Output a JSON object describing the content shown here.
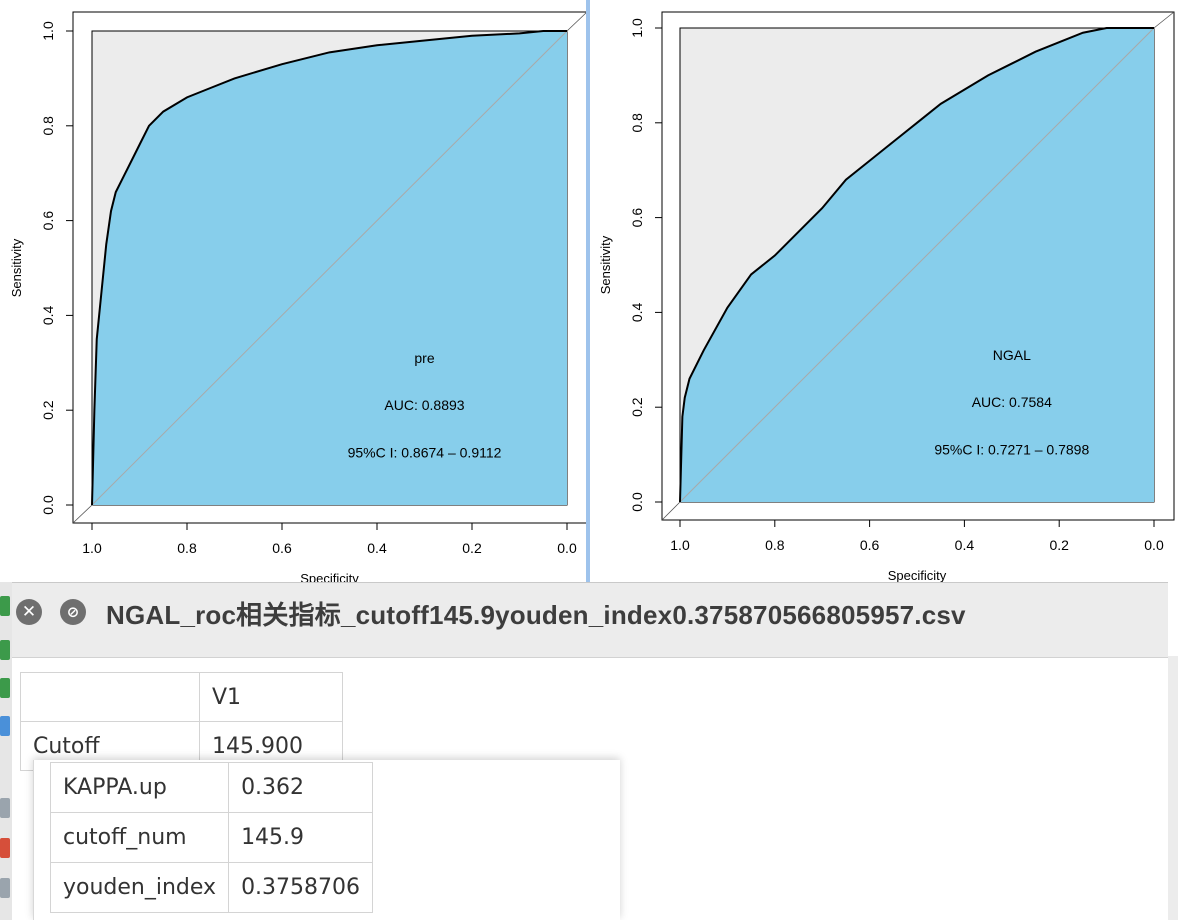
{
  "plots": [
    {
      "title": "",
      "xlabel": "Specificity",
      "ylabel": "Sensitivity",
      "x_ticks": [
        "1.0",
        "0.8",
        "0.6",
        "0.4",
        "0.2",
        "0.0"
      ],
      "y_ticks": [
        "0.0",
        "0.2",
        "0.4",
        "0.6",
        "0.8",
        "1.0"
      ],
      "label": "pre",
      "auc_text": "AUC: 0.8893",
      "ci_text": "95%C I: 0.8674 – 0.9112"
    },
    {
      "title": "",
      "xlabel": "Specificity",
      "ylabel": "Sensitivity",
      "x_ticks": [
        "1.0",
        "0.8",
        "0.6",
        "0.4",
        "0.2",
        "0.0"
      ],
      "y_ticks": [
        "0.0",
        "0.2",
        "0.4",
        "0.6",
        "0.8",
        "1.0"
      ],
      "label": "NGAL",
      "auc_text": "AUC: 0.7584",
      "ci_text": "95%C I: 0.7271 – 0.7898"
    }
  ],
  "chart_data": [
    {
      "type": "line",
      "series": [
        {
          "name": "pre",
          "x": [
            1.0,
            0.995,
            0.99,
            0.98,
            0.97,
            0.96,
            0.95,
            0.93,
            0.9,
            0.88,
            0.85,
            0.8,
            0.75,
            0.7,
            0.6,
            0.5,
            0.4,
            0.3,
            0.2,
            0.1,
            0.05,
            0.0
          ],
          "y": [
            0.0,
            0.2,
            0.35,
            0.45,
            0.55,
            0.62,
            0.66,
            0.7,
            0.76,
            0.8,
            0.83,
            0.86,
            0.88,
            0.9,
            0.93,
            0.955,
            0.97,
            0.98,
            0.99,
            0.995,
            1.0,
            1.0
          ]
        }
      ],
      "auc": 0.8893,
      "ci": [
        0.8674,
        0.9112
      ],
      "xlim": [
        1.0,
        0.0
      ],
      "ylim": [
        0.0,
        1.0
      ],
      "xlabel": "Specificity",
      "ylabel": "Sensitivity",
      "diagonal": true,
      "fill_color": "#87ceeb",
      "background_color": "#ececec"
    },
    {
      "type": "line",
      "series": [
        {
          "name": "NGAL",
          "x": [
            1.0,
            0.995,
            0.99,
            0.98,
            0.95,
            0.9,
            0.85,
            0.8,
            0.75,
            0.7,
            0.65,
            0.6,
            0.55,
            0.5,
            0.45,
            0.4,
            0.35,
            0.3,
            0.25,
            0.2,
            0.15,
            0.1,
            0.05,
            0.0
          ],
          "y": [
            0.0,
            0.18,
            0.22,
            0.26,
            0.32,
            0.41,
            0.48,
            0.52,
            0.57,
            0.62,
            0.68,
            0.72,
            0.76,
            0.8,
            0.84,
            0.87,
            0.9,
            0.925,
            0.95,
            0.97,
            0.99,
            1.0,
            1.0,
            1.0
          ]
        }
      ],
      "auc": 0.7584,
      "ci": [
        0.7271,
        0.7898
      ],
      "xlim": [
        1.0,
        0.0
      ],
      "ylim": [
        0.0,
        1.0
      ],
      "xlabel": "Specificity",
      "ylabel": "Sensitivity",
      "diagonal": true,
      "fill_color": "#87ceeb",
      "background_color": "#ececec"
    }
  ],
  "viewer": {
    "title": "NGAL_roc相关指标_cutoff145.9youden_index0.375870566805957.csv",
    "close_icon": "x-circle-icon",
    "info_icon": "slash-circle-icon",
    "table_header": [
      "",
      "V1"
    ],
    "table_rows": [
      {
        "name": "Cutoff",
        "value": "145.900"
      }
    ],
    "popup_rows": [
      {
        "name": "KAPPA.up",
        "value": "0.362"
      },
      {
        "name": "cutoff_num",
        "value": "145.9"
      },
      {
        "name": "youden_index",
        "value": "0.3758706"
      }
    ]
  },
  "colors": {
    "roc_fill": "#87ceeb",
    "plot_bg": "#ececec",
    "diagonal": "#a9a9a9",
    "titlebar": "#ececec",
    "divider": "#9ec3ec"
  }
}
